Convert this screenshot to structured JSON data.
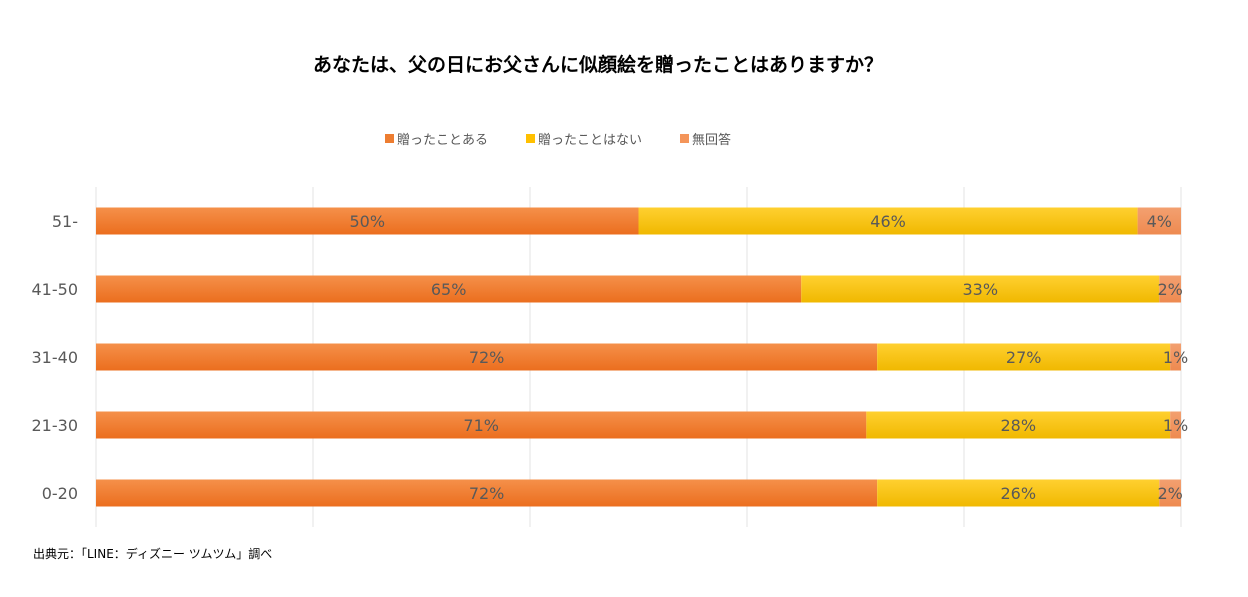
{
  "chart_data": {
    "type": "bar",
    "orientation": "horizontal",
    "stacked": true,
    "title": "あなたは、父の日にお父さんに似顔絵を贈ったことはありますか？",
    "categories": [
      "51-",
      "41-50",
      "31-40",
      "21-30",
      "0-20"
    ],
    "series": [
      {
        "name": "贈ったことある",
        "color": "#ED7D31",
        "values": [
          50,
          65,
          72,
          71,
          72
        ],
        "labels": [
          "50%",
          "65%",
          "72%",
          "71%",
          "72%"
        ]
      },
      {
        "name": "贈ったことはない",
        "color": "#FFC000",
        "values": [
          46,
          33,
          27,
          28,
          26
        ],
        "labels": [
          "46%",
          "33%",
          "27%",
          "28%",
          "26%"
        ]
      },
      {
        "name": "無回答",
        "color": "#F4955A",
        "values": [
          4,
          2,
          1,
          1,
          2
        ],
        "labels": [
          "4%",
          "2%",
          "1%",
          "1%",
          "2%"
        ]
      }
    ],
    "xlim": [
      0,
      100
    ],
    "grid": true,
    "legend_position": "top",
    "xlabel": "",
    "ylabel": ""
  },
  "source": "出典元：「LINE：ディズニー ツムツム」調べ"
}
